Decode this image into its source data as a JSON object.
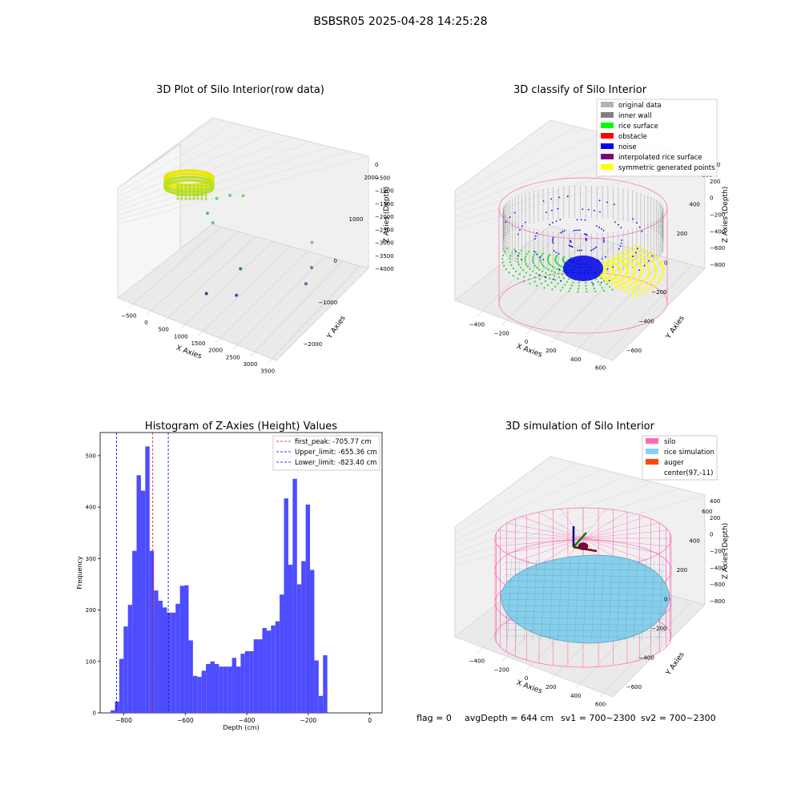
{
  "suptitle": "BSBSR05 2025-04-28 14:25:28",
  "footer": {
    "flag": "flag = 0",
    "avg_depth": "avgDepth = 644 cm",
    "sv1": "sv1 = 700~2300",
    "sv2": "sv2 = 700~2300"
  },
  "colors": {
    "histogram_bar": "#4d4dff",
    "first_peak_line": "#ff0000",
    "limit_line": "#0000cc",
    "silo_wire": "#ff69b4",
    "rice_surface": "#87cefa",
    "auger": "#ff4500",
    "inner_wall": "#808080",
    "rice_points": "#00ff00",
    "noise": "#0000ff",
    "symmetric": "#ffff00"
  },
  "chart_data": [
    {
      "type": "scatter",
      "title": "3D Plot of Silo Interior(row data)",
      "xlabel": "X Axies",
      "ylabel": "Y Axies",
      "zlabel": "Z Axies (Depth)",
      "x_ticks": [
        "−500",
        "0",
        "500",
        "1000",
        "1500",
        "2000",
        "2500",
        "3000",
        "3500"
      ],
      "y_ticks": [
        "−2000",
        "−1000",
        "0",
        "1000",
        "2000"
      ],
      "z_ticks": [
        "0",
        "−500",
        "−1000",
        "−1500",
        "−2000",
        "−2500",
        "−3000",
        "−3500",
        "−4000"
      ],
      "xlim": [
        -600,
        3600
      ],
      "ylim": [
        -2000,
        2800
      ],
      "zlim": [
        -4100,
        200
      ],
      "points": [
        {
          "x": 2700,
          "y": 1600,
          "z": -2400
        },
        {
          "x": 2900,
          "y": 900,
          "z": -3400
        },
        {
          "x": 2950,
          "y": 1100,
          "z": -2900
        },
        {
          "x": 1500,
          "y": 200,
          "z": -3100
        },
        {
          "x": 1650,
          "y": -300,
          "z": -3700
        },
        {
          "x": 1100,
          "y": -800,
          "z": -3600
        },
        {
          "x": 400,
          "y": 1100,
          "z": -1600
        },
        {
          "x": 700,
          "y": 1200,
          "z": -1400
        },
        {
          "x": 900,
          "y": 1500,
          "z": -1500
        },
        {
          "x": 250,
          "y": 900,
          "z": -2100
        },
        {
          "x": 500,
          "y": 700,
          "z": -2200
        },
        {
          "x": 100,
          "y": 600,
          "z": -1300
        }
      ]
    },
    {
      "type": "scatter",
      "title": "3D classify of Silo Interior",
      "xlabel": "X Axies",
      "ylabel": "Y Axies",
      "zlabel": "Z Axies (Depth)",
      "x_ticks": [
        "−400",
        "−200",
        "0",
        "200",
        "400",
        "600"
      ],
      "y_ticks": [
        "−600",
        "−400",
        "−200",
        "0",
        "200",
        "400",
        "600"
      ],
      "z_ticks": [
        "400",
        "200",
        "0",
        "−200",
        "−400",
        "−600",
        "−800"
      ],
      "legend": [
        {
          "label": "original data",
          "color": "#b3b3b3"
        },
        {
          "label": "inner wall",
          "color": "#808080"
        },
        {
          "label": "rice surface",
          "color": "#00ff00"
        },
        {
          "label": "obstacle",
          "color": "#ff0000"
        },
        {
          "label": "noise",
          "color": "#0000ff"
        },
        {
          "label": "interpolated rice surface",
          "color": "#800080"
        },
        {
          "label": "symmetric generated points",
          "color": "#ffff00"
        }
      ]
    },
    {
      "type": "bar",
      "title": "Histogram of Z-Axies (Height) Values",
      "xlabel": "Depth (cm)",
      "ylabel": "Frequency",
      "xlim": [
        -877,
        40
      ],
      "ylim": [
        0,
        545
      ],
      "x_ticks": [
        -800,
        -600,
        -400,
        -200,
        0
      ],
      "x_tick_labels": [
        "−800",
        "−600",
        "−400",
        "−200",
        "0"
      ],
      "y_ticks": [
        0,
        100,
        200,
        300,
        400,
        500
      ],
      "y_tick_labels": [
        "0",
        "100",
        "200",
        "300",
        "400",
        "500"
      ],
      "bin_start": -843,
      "bin_width": 14.1,
      "values": [
        5,
        22,
        105,
        168,
        210,
        315,
        462,
        432,
        518,
        315,
        238,
        218,
        205,
        195,
        195,
        212,
        247,
        248,
        141,
        72,
        70,
        82,
        95,
        100,
        95,
        90,
        90,
        90,
        107,
        90,
        115,
        120,
        120,
        143,
        143,
        165,
        160,
        170,
        178,
        230,
        417,
        288,
        455,
        250,
        295,
        405,
        278,
        102,
        33,
        112
      ],
      "vlines": [
        {
          "label": "first_peak: -705.77 cm",
          "x": -705.77,
          "color": "#ff0000"
        },
        {
          "label": "Upper_limit: -655.36 cm",
          "x": -655.36,
          "color": "#0000cc"
        },
        {
          "label": "Lower_limit: -823.40 cm",
          "x": -823.4,
          "color": "#0000cc"
        }
      ]
    },
    {
      "type": "scatter",
      "title": "3D simulation of Silo Interior",
      "xlabel": "X Axies",
      "ylabel": "Y Axies",
      "zlabel": "Z Axies (Depth)",
      "x_ticks": [
        "−400",
        "−200",
        "0",
        "200",
        "400",
        "600"
      ],
      "y_ticks": [
        "−600",
        "−400",
        "−200",
        "0",
        "200",
        "400",
        "600"
      ],
      "z_ticks": [
        "400",
        "200",
        "0",
        "−200",
        "−400",
        "−600",
        "−800"
      ],
      "legend": [
        {
          "label": "silo",
          "color": "#ff69b4"
        },
        {
          "label": "rice simulation",
          "color": "#87cefa"
        },
        {
          "label": "auger",
          "color": "#ff4500"
        },
        {
          "label": "center(97,-11)",
          "color": "#ffffff"
        }
      ]
    }
  ]
}
